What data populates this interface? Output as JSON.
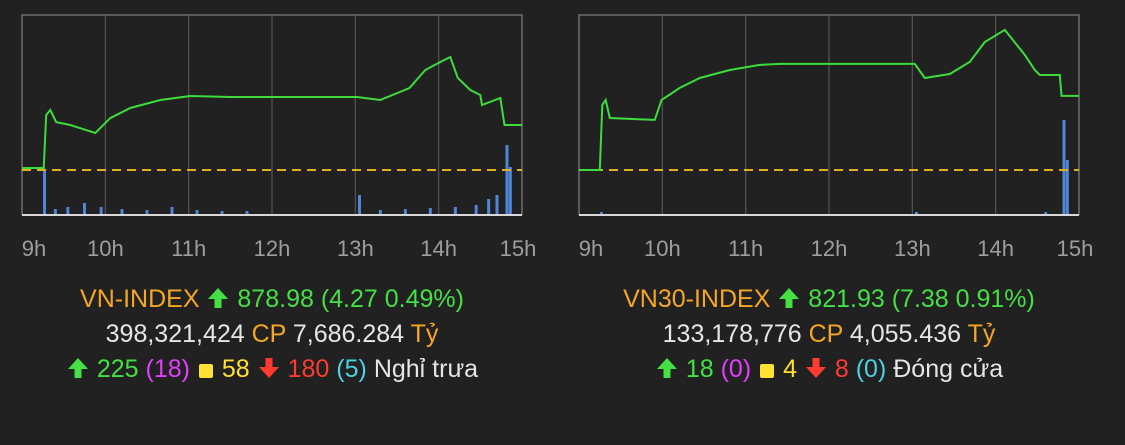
{
  "chart_data": [
    {
      "type": "line",
      "color": "#3ddc3d",
      "x": [
        9.0,
        9.26,
        9.29,
        9.34,
        9.41,
        9.58,
        9.88,
        10.06,
        10.3,
        10.66,
        11.02,
        11.5,
        11.98,
        13.02,
        13.3,
        13.65,
        13.84,
        14.02,
        14.14,
        14.23,
        14.38,
        14.5,
        14.52,
        14.74,
        14.79,
        15.0
      ],
      "values": [
        874.9,
        874.9,
        879.93,
        880.4,
        879.26,
        878.98,
        878.22,
        879.64,
        880.59,
        881.35,
        881.73,
        881.64,
        881.64,
        881.64,
        881.35,
        882.49,
        884.2,
        884.96,
        885.43,
        883.44,
        882.3,
        881.83,
        880.88,
        881.54,
        878.98,
        878.98
      ],
      "xlim": [
        9,
        15
      ],
      "ylim": [
        870.44,
        889.42
      ],
      "xticks": [
        {
          "value": 9,
          "label": "9h"
        },
        {
          "value": 10,
          "label": "10h"
        },
        {
          "value": 11,
          "label": "11h"
        },
        {
          "value": 12,
          "label": "12h"
        },
        {
          "value": 13,
          "label": "13h"
        },
        {
          "value": 14,
          "label": "14h"
        },
        {
          "value": 15,
          "label": "15h"
        }
      ],
      "grid": true,
      "reference": 874.71,
      "reference_color": "#e0b020",
      "volume": {
        "color": "#4f86d6",
        "x": [
          9.27,
          9.4,
          9.55,
          9.75,
          9.95,
          10.2,
          10.5,
          10.8,
          11.1,
          11.4,
          11.7,
          13.05,
          13.3,
          13.6,
          13.9,
          14.2,
          14.45,
          14.6,
          14.7,
          14.82,
          14.86
        ],
        "values": [
          22.5,
          3,
          4,
          6,
          4,
          3,
          2.5,
          4,
          2.5,
          2,
          2,
          10,
          2.5,
          3,
          3.5,
          4,
          5,
          8,
          10,
          35,
          24
        ]
      },
      "y2lim": [
        0,
        100
      ],
      "info": {
        "name": "VN-INDEX",
        "value": "878.98",
        "change": "(4.27 0.49%)",
        "volume": "398,321,424",
        "volume_unit": "CP",
        "turnover": "7,686.284",
        "turnover_unit": "Tỷ",
        "advancers": "225",
        "ceiling": "(18)",
        "unchanged": "58",
        "decliners": "180",
        "floor": "(5)",
        "status": "Nghỉ trưa"
      }
    },
    {
      "type": "line",
      "color": "#3ddc3d",
      "x": [
        9.0,
        9.25,
        9.28,
        9.32,
        9.37,
        9.91,
        9.99,
        10.21,
        10.45,
        10.81,
        11.17,
        11.41,
        13.03,
        13.15,
        13.45,
        13.69,
        13.87,
        14.11,
        14.35,
        14.47,
        14.53,
        14.77,
        14.79,
        15.0
      ],
      "values": [
        814.55,
        814.55,
        821.03,
        821.53,
        819.73,
        819.54,
        821.53,
        822.73,
        823.72,
        824.52,
        825.02,
        825.12,
        825.12,
        823.72,
        824.12,
        825.32,
        827.31,
        828.51,
        826.02,
        824.52,
        824.02,
        824.02,
        821.93,
        821.93
      ],
      "xlim": [
        9,
        15
      ],
      "ylim": [
        810.06,
        830.0
      ],
      "xticks": [
        {
          "value": 9,
          "label": "9h"
        },
        {
          "value": 10,
          "label": "10h"
        },
        {
          "value": 11,
          "label": "11h"
        },
        {
          "value": 12,
          "label": "12h"
        },
        {
          "value": 13,
          "label": "13h"
        },
        {
          "value": 14,
          "label": "14h"
        },
        {
          "value": 15,
          "label": "15h"
        }
      ],
      "grid": true,
      "reference": 814.55,
      "reference_color": "#e0b020",
      "volume": {
        "color": "#4f86d6",
        "x": [
          9.27,
          13.05,
          14.6,
          14.82,
          14.86
        ],
        "values": [
          1.5,
          1.5,
          1.5,
          47.5,
          27.5
        ]
      },
      "y2lim": [
        0,
        100
      ],
      "info": {
        "name": "VN30-INDEX",
        "value": "821.93",
        "change": "(7.38 0.91%)",
        "volume": "133,178,776",
        "volume_unit": "CP",
        "turnover": "4,055.436",
        "turnover_unit": "Tỷ",
        "advancers": "18",
        "ceiling": "(0)",
        "unchanged": "4",
        "decliners": "8",
        "floor": "(0)",
        "status": "Đóng cửa"
      }
    }
  ]
}
